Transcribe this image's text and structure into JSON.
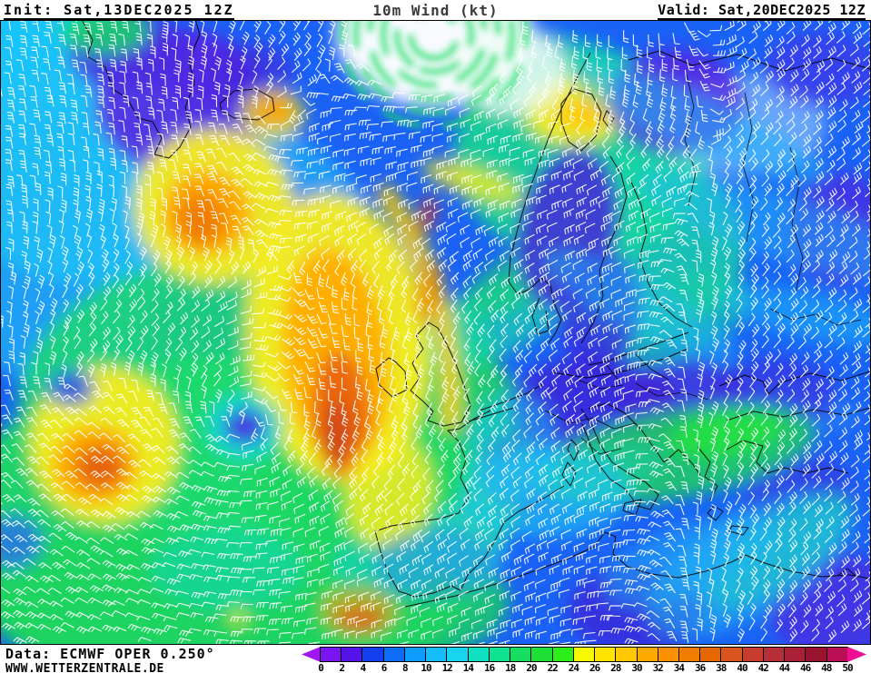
{
  "header": {
    "init_label": "Init: Sat,13DEC2025 12Z",
    "title": "10m Wind (kt)",
    "valid_label": "Valid: Sat,20DEC2025 12Z"
  },
  "footer": {
    "data_source": "Data: ECMWF OPER 0.250°",
    "website": "WWW.WETTERZENTRALE.DE"
  },
  "colorbar": {
    "unit": "kt",
    "tick_labels": [
      "0",
      "2",
      "4",
      "6",
      "8",
      "10",
      "12",
      "14",
      "16",
      "18",
      "20",
      "22",
      "24",
      "26",
      "28",
      "30",
      "32",
      "34",
      "36",
      "38",
      "40",
      "42",
      "44",
      "46",
      "48",
      "50"
    ],
    "segment_colors": [
      "#7a14f0",
      "#5414e8",
      "#1440f0",
      "#0d6cfa",
      "#0f9cff",
      "#15bdfd",
      "#17d5ee",
      "#10dfc0",
      "#0fe392",
      "#16df5f",
      "#1edf36",
      "#2cee18",
      "#f8f800",
      "#ffe400",
      "#ffc800",
      "#ffaa00",
      "#fc9000",
      "#f07c00",
      "#e66600",
      "#da5420",
      "#c83c30",
      "#b62e38",
      "#a82136",
      "#9a1430",
      "#ba0f55"
    ],
    "underflow_arrow_color": "#a018f0",
    "overflow_arrow_color": "#ee0f92",
    "border_color": "#000000"
  },
  "map": {
    "field": "10m wind speed",
    "coastline_color": "#000000",
    "wind_barb_color": "#ffffff",
    "polar_ring_color": "#1ade63"
  }
}
